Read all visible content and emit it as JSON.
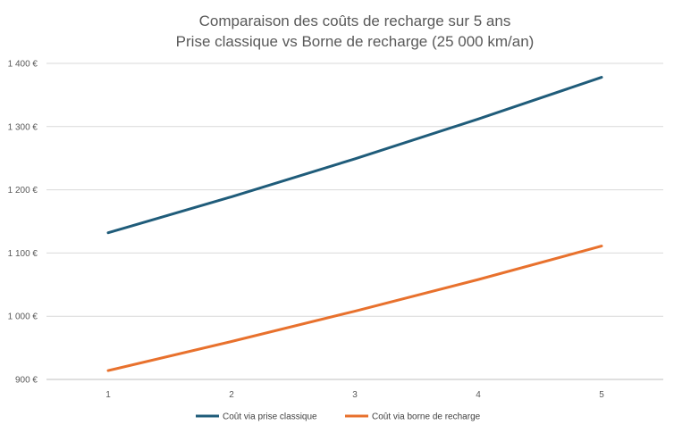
{
  "chart_data": {
    "type": "line",
    "title": "Comparaison des coûts de recharge sur 5 ans",
    "subtitle": "Prise classique vs Borne de recharge (25 000 km/an)",
    "xlabel": "",
    "ylabel": "",
    "categories": [
      "1",
      "2",
      "3",
      "4",
      "5"
    ],
    "ylim": [
      900,
      1400
    ],
    "yticks": [
      900,
      1000,
      1100,
      1200,
      1300,
      1400
    ],
    "ytick_labels": [
      "900 €",
      "1 000 €",
      "1 100 €",
      "1 200 €",
      "1 300 €",
      "1 400 €"
    ],
    "grid": true,
    "legend_position": "bottom",
    "series": [
      {
        "name": "Coût via prise classique",
        "color": "#1f5c7a",
        "values": [
          1132,
          1189,
          1249,
          1312,
          1378
        ]
      },
      {
        "name": "Coût via borne de recharge",
        "color": "#e8712d",
        "values": [
          914,
          960,
          1008,
          1058,
          1111
        ]
      }
    ]
  }
}
